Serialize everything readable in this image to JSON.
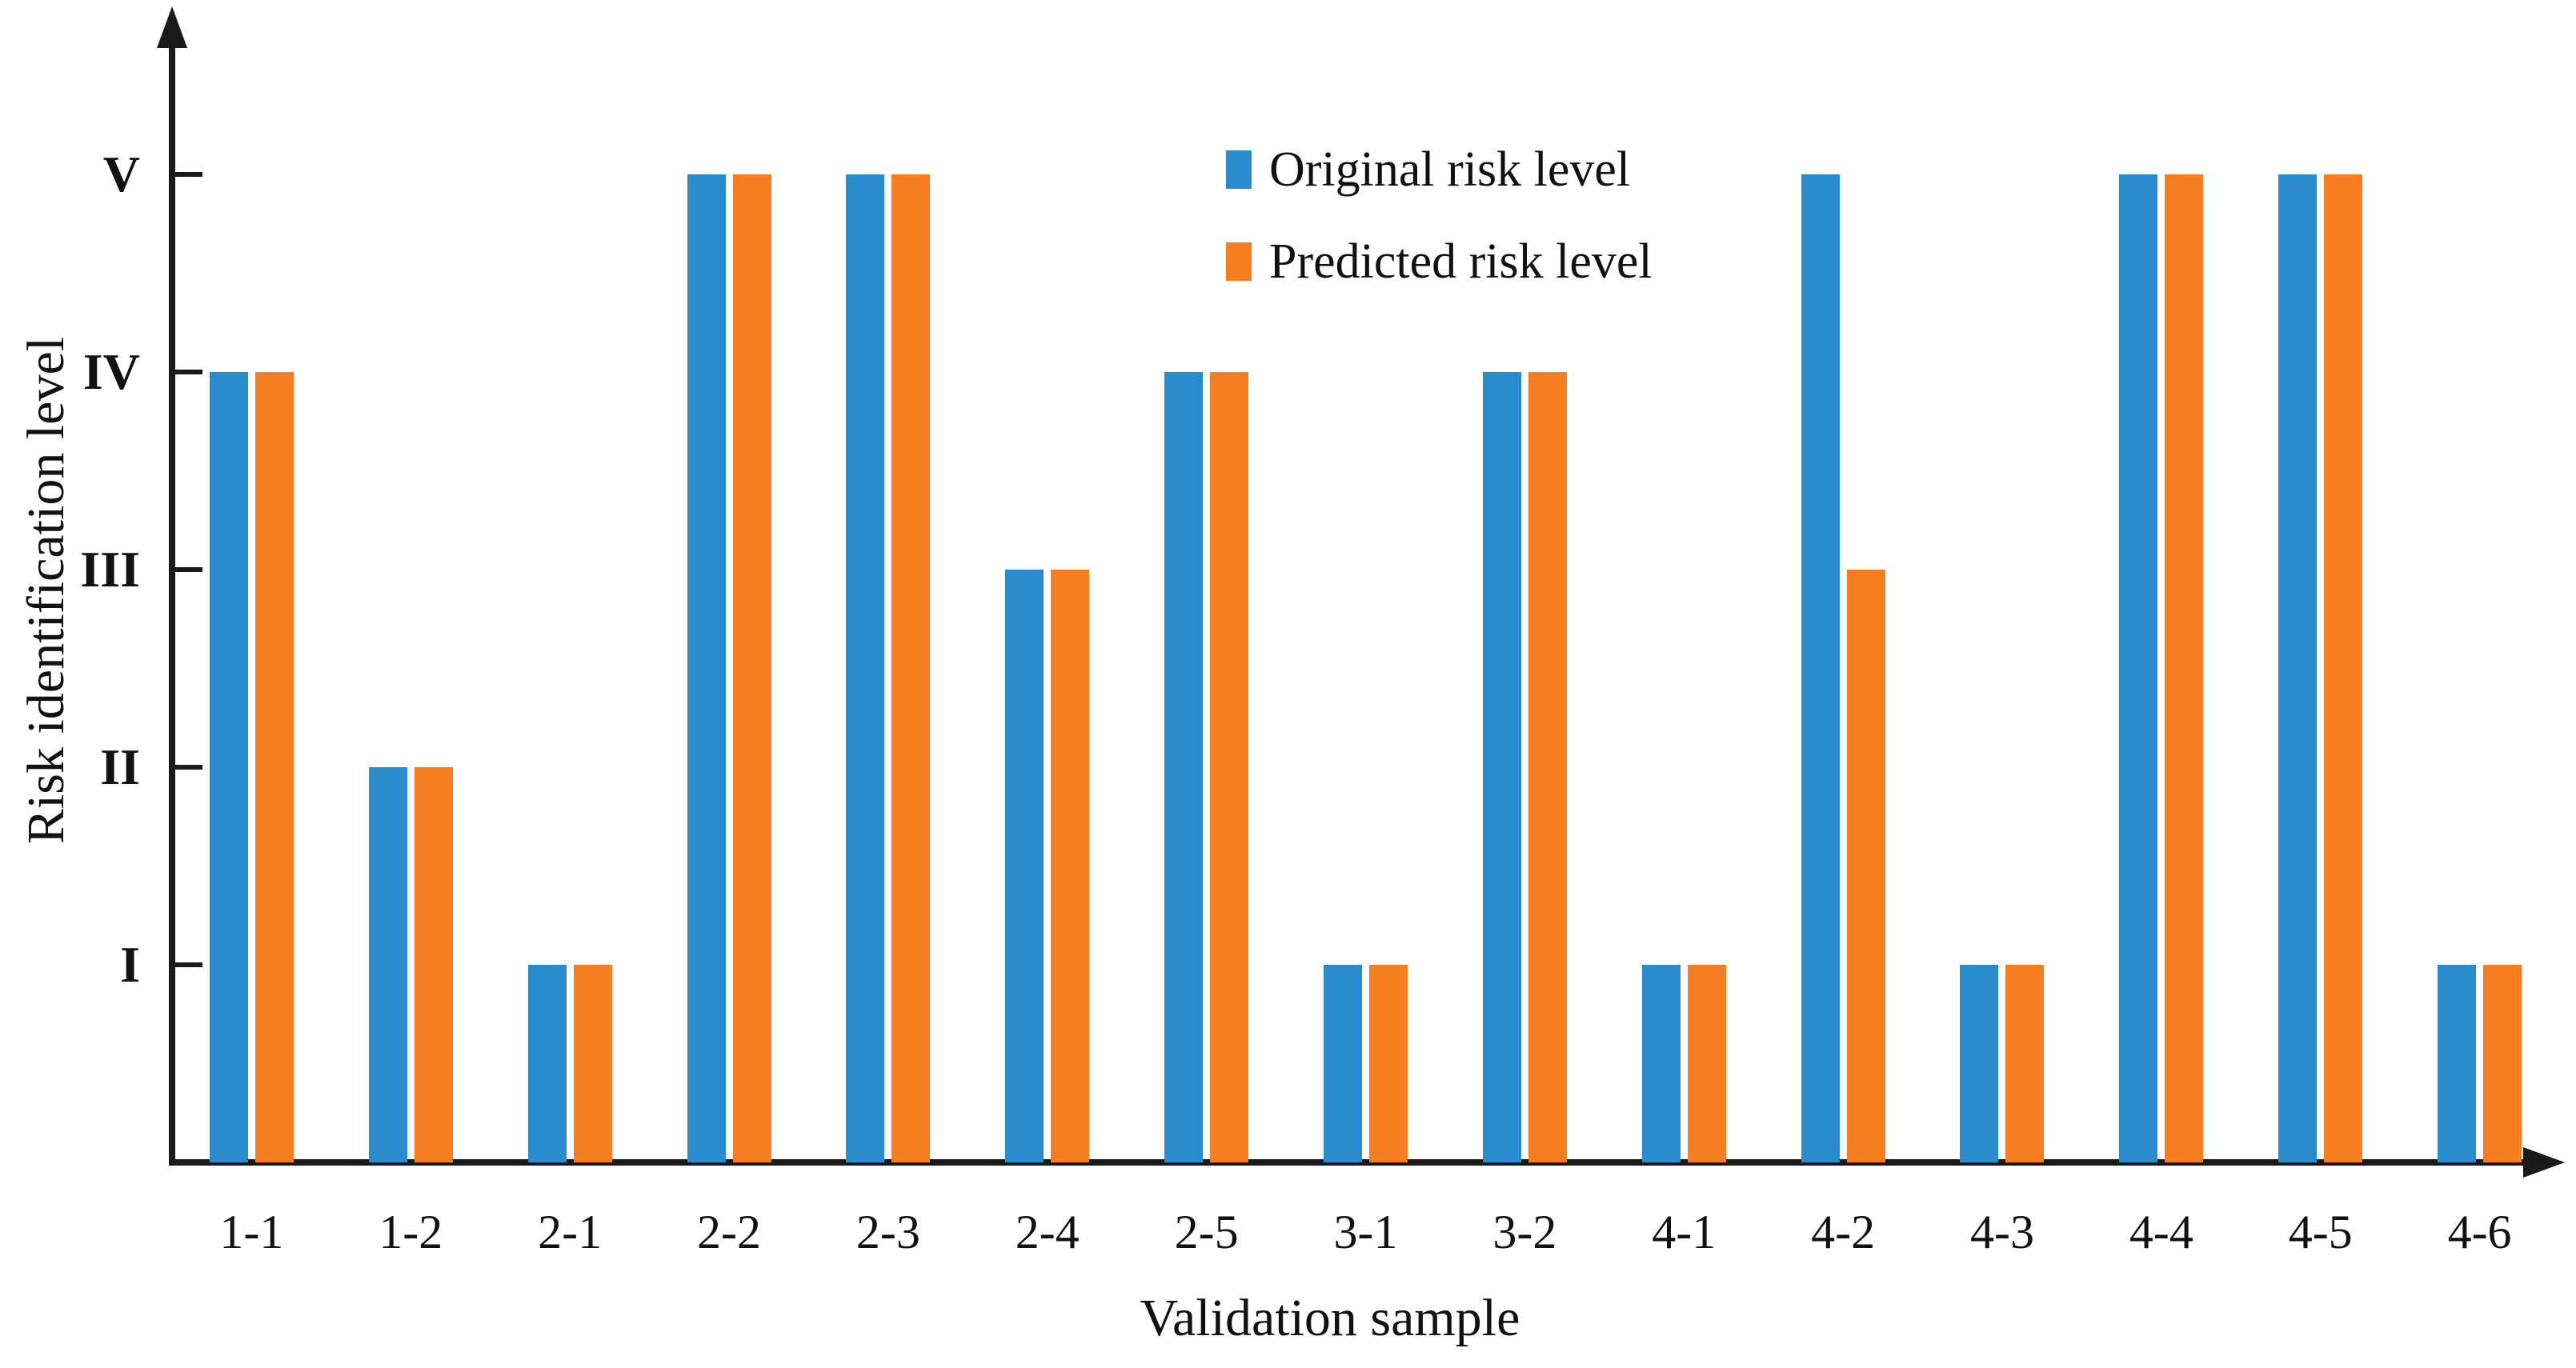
{
  "figure": {
    "background": "#ffffff",
    "axis_color": "#1a1a1a",
    "text_color": "#111111"
  },
  "chart_data": {
    "type": "bar",
    "title": "",
    "xlabel": "Validation sample",
    "ylabel": "Risk identification level",
    "categories": [
      "1-1",
      "1-2",
      "2-1",
      "2-2",
      "2-3",
      "2-4",
      "2-5",
      "3-1",
      "3-2",
      "4-1",
      "4-2",
      "4-3",
      "4-4",
      "4-5",
      "4-6"
    ],
    "series": [
      {
        "name": "Original risk level",
        "color": "#2A8CCD",
        "values": [
          4,
          2,
          1,
          5,
          5,
          3,
          4,
          1,
          4,
          1,
          5,
          1,
          5,
          5,
          1
        ]
      },
      {
        "name": "Predicted risk level",
        "color": "#F67E20",
        "values": [
          4,
          2,
          1,
          5,
          5,
          3,
          4,
          1,
          4,
          1,
          3,
          1,
          5,
          5,
          1
        ]
      }
    ],
    "y_tick_labels": [
      "I",
      "II",
      "III",
      "IV",
      "V"
    ],
    "y_tick_values": [
      1,
      2,
      3,
      4,
      5
    ],
    "ylim": [
      0,
      5.8
    ],
    "grid": false,
    "legend_position": "upper center",
    "axis_arrows": true
  }
}
